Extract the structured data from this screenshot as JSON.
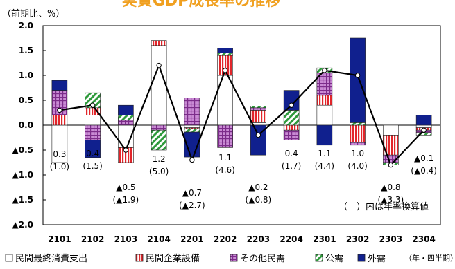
{
  "chart_data": {
    "type": "bar",
    "title": "実質GDP成長率の推移",
    "unit_label": "（前期比、%）",
    "xlabel": "（年・四半期）",
    "note": "（　）内は年率換算値",
    "ylim": [
      -2.0,
      2.0
    ],
    "yticks": [
      {
        "v": 2.0,
        "label": "2.0"
      },
      {
        "v": 1.5,
        "label": "1.5"
      },
      {
        "v": 1.0,
        "label": "1.0"
      },
      {
        "v": 0.5,
        "label": "0.5"
      },
      {
        "v": 0.0,
        "label": "0.0"
      },
      {
        "v": -0.5,
        "label": "▲0.5"
      },
      {
        "v": -1.0,
        "label": "▲1.0"
      },
      {
        "v": -1.5,
        "label": "▲1.5"
      },
      {
        "v": -2.0,
        "label": "▲2.0"
      }
    ],
    "categories": [
      "2101",
      "2102",
      "2103",
      "2104",
      "2201",
      "2202",
      "2203",
      "2204",
      "2301",
      "2302",
      "2303",
      "2304"
    ],
    "series": [
      {
        "name": "民間最終消費支出",
        "color": "#ffffff",
        "pattern": "solid",
        "values": [
          -0.75,
          0.2,
          -0.45,
          1.6,
          -0.05,
          1.0,
          0.05,
          0.0,
          0.4,
          0.0,
          -0.2,
          -0.05
        ]
      },
      {
        "name": "民間企業設備",
        "color": "#e2262b",
        "pattern": "vstripe",
        "values": [
          0.2,
          0.15,
          -0.3,
          0.1,
          -0.02,
          0.4,
          0.25,
          -0.1,
          0.2,
          -0.35,
          -0.4,
          -0.05
        ]
      },
      {
        "name": "その他民需",
        "color": "#a34fb0",
        "pattern": "grid",
        "values": [
          0.5,
          -0.3,
          0.1,
          -0.1,
          0.55,
          -0.45,
          0.05,
          -0.2,
          0.45,
          -0.05,
          -0.15,
          -0.05
        ]
      },
      {
        "name": "公需",
        "color": "#2f9a3c",
        "pattern": "dstripe",
        "values": [
          0.0,
          0.3,
          0.1,
          -0.4,
          -0.07,
          0.05,
          0.03,
          0.3,
          0.1,
          0.05,
          -0.05,
          -0.05
        ]
      },
      {
        "name": "外需",
        "color": "#10208e",
        "pattern": "solid",
        "values": [
          0.2,
          -0.35,
          0.2,
          0.0,
          -0.5,
          0.1,
          -0.6,
          0.4,
          -0.4,
          1.7,
          0.0,
          0.2
        ]
      }
    ],
    "gdp_line": {
      "values": [
        0.3,
        0.4,
        -0.5,
        1.2,
        -0.7,
        1.1,
        -0.2,
        0.4,
        1.1,
        1.0,
        -0.8,
        -0.1
      ],
      "labels": [
        "0.3",
        "0.4",
        "▲0.5",
        "1.2",
        "▲0.7",
        "1.1",
        "▲0.2",
        "0.4",
        "1.1",
        "1.0",
        "▲0.8",
        "▲0.1"
      ],
      "annualized": [
        "(1.0)",
        "(1.5)",
        "(▲1.9)",
        "(5.0)",
        "(▲2.7)",
        "(4.6)",
        "(▲0.8)",
        "(1.7)",
        "(4.4)",
        "(4.0)",
        "(▲3.3)",
        "(▲0.4)"
      ]
    },
    "grid": false,
    "legend": "bottom"
  }
}
